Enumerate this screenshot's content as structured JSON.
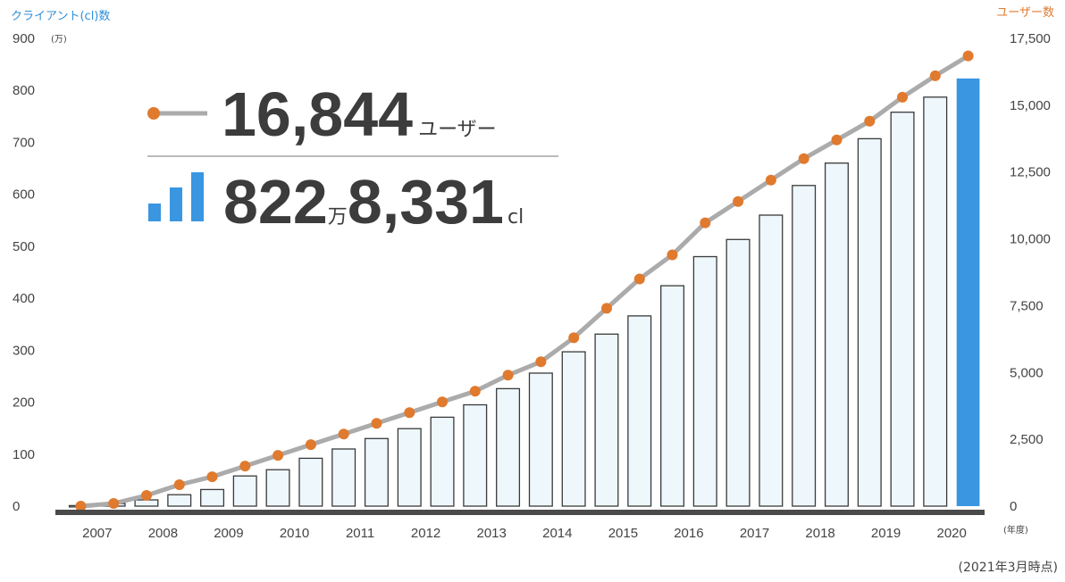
{
  "chart_data": {
    "type": "bar",
    "left_axis_title": "クライアント(cl)数",
    "left_axis_unit": "(万)",
    "right_axis_title": "ユーザー数",
    "x_unit": "(年度)",
    "note": "(2021年3月時点)",
    "categories": [
      "2007",
      "2008",
      "2009",
      "2010",
      "2011",
      "2012",
      "2013",
      "2014",
      "2015",
      "2016",
      "2017",
      "2018",
      "2019",
      "2020"
    ],
    "left_ylim": [
      0,
      900
    ],
    "left_ticks": [
      "0",
      "100",
      "200",
      "300",
      "400",
      "500",
      "600",
      "700",
      "800",
      "900"
    ],
    "right_ylim": [
      0,
      17500
    ],
    "right_ticks": [
      "0",
      "2,500",
      "5,000",
      "7,500",
      "10,000",
      "12,500",
      "15,000",
      "17,500"
    ],
    "bars": {
      "name": "クライアント(cl)数",
      "x": [
        2007.25,
        2007.75,
        2008.25,
        2008.75,
        2009.25,
        2009.75,
        2010.25,
        2010.75,
        2011.25,
        2011.75,
        2012.25,
        2012.75,
        2013.25,
        2013.75,
        2014.25,
        2014.75,
        2015.25,
        2015.75,
        2016.25,
        2016.75,
        2017.25,
        2017.75,
        2018.25,
        2018.75,
        2019.25,
        2019.75,
        2020.25,
        2020.75
      ],
      "values": [
        1,
        5,
        12,
        22,
        32,
        58,
        70,
        92,
        110,
        130,
        149,
        171,
        195,
        226,
        256,
        297,
        331,
        366,
        424,
        480,
        513,
        560,
        617,
        660,
        707,
        758,
        787,
        822.8331
      ],
      "highlight_index": 27,
      "color": "#eef7fc",
      "highlight_color": "#3a96e0"
    },
    "line": {
      "name": "ユーザー数",
      "x": [
        2007.25,
        2007.75,
        2008.25,
        2008.75,
        2009.25,
        2009.75,
        2010.25,
        2010.75,
        2011.25,
        2011.75,
        2012.25,
        2012.75,
        2013.25,
        2013.75,
        2014.25,
        2014.75,
        2015.25,
        2015.75,
        2016.25,
        2016.75,
        2017.25,
        2017.75,
        2018.25,
        2018.75,
        2019.25,
        2019.75,
        2020.25,
        2020.75
      ],
      "values": [
        0,
        100,
        400,
        800,
        1100,
        1500,
        1900,
        2300,
        2700,
        3100,
        3500,
        3900,
        4300,
        4900,
        5400,
        6300,
        7400,
        8500,
        9400,
        10600,
        11400,
        12200,
        13000,
        13700,
        14400,
        15300,
        16100,
        16844
      ],
      "color": "#ababab",
      "marker_color": "#e07a2e"
    },
    "callout": {
      "users_value": "16,844",
      "users_unit": "ユーザー",
      "clients_man": "822",
      "clients_man_unit": "万",
      "clients_rest": "8,331",
      "clients_unit": "cl"
    }
  }
}
